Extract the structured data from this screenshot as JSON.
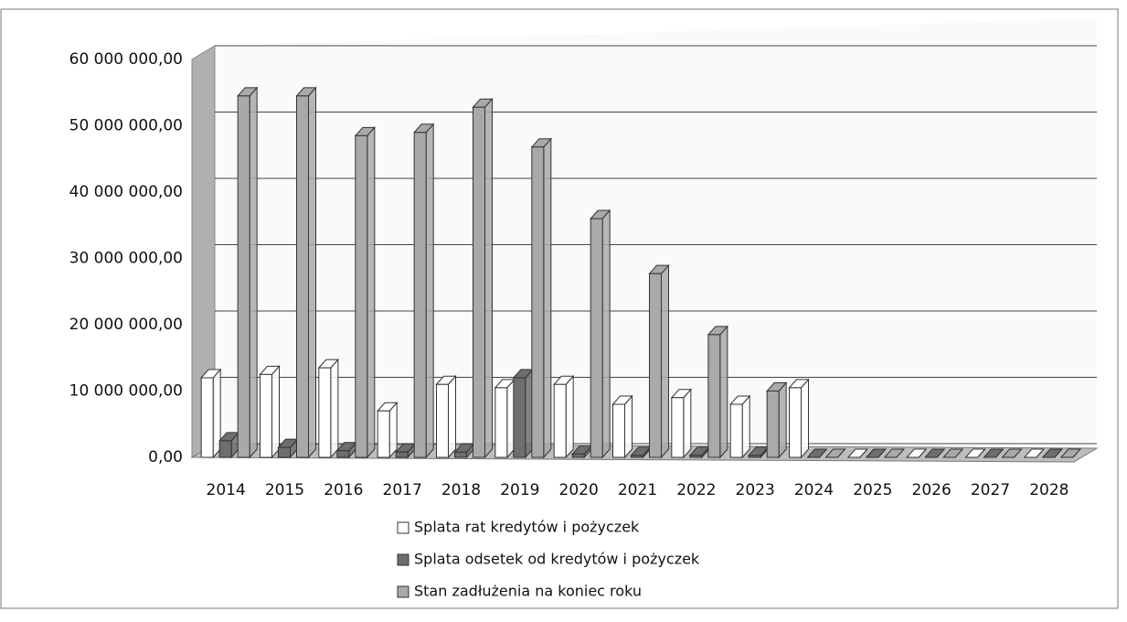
{
  "chart_data": {
    "type": "bar3d",
    "categories": [
      "2014",
      "2015",
      "2016",
      "2017",
      "2018",
      "2019",
      "2020",
      "2021",
      "2022",
      "2023",
      "2024",
      "2025",
      "2026",
      "2027",
      "2028"
    ],
    "series": [
      {
        "name": "Splata rat kredytów i pożyczek",
        "color": "#ffffff",
        "values": [
          12000000,
          12500000,
          13500000,
          7000000,
          11000000,
          10500000,
          11000000,
          8000000,
          9000000,
          8000000,
          10500000,
          0,
          0,
          0,
          0
        ]
      },
      {
        "name": "Splata odsetek od kredytów i pożyczek",
        "color": "#6e6e6e",
        "values": [
          2500000,
          1500000,
          1000000,
          800000,
          800000,
          12000000,
          500000,
          300000,
          300000,
          300000,
          0,
          0,
          0,
          0,
          0
        ]
      },
      {
        "name": "Stan zadłużenia na koniec roku",
        "color": "#a9a9a9",
        "values": [
          54500000,
          54500000,
          48500000,
          49000000,
          52800000,
          46800000,
          36000000,
          27700000,
          18500000,
          10000000,
          0,
          0,
          0,
          0,
          0
        ]
      }
    ],
    "ylim": [
      0,
      60000000
    ],
    "yticks": [
      {
        "value": 0,
        "label": "0,00"
      },
      {
        "value": 10000000,
        "label": "10 000 000,00"
      },
      {
        "value": 20000000,
        "label": "20 000 000,00"
      },
      {
        "value": 30000000,
        "label": "30 000 000,00"
      },
      {
        "value": 40000000,
        "label": "40 000 000,00"
      },
      {
        "value": 50000000,
        "label": "50 000 000,00"
      },
      {
        "value": 60000000,
        "label": "60 000 000,00"
      }
    ],
    "grid": true
  }
}
